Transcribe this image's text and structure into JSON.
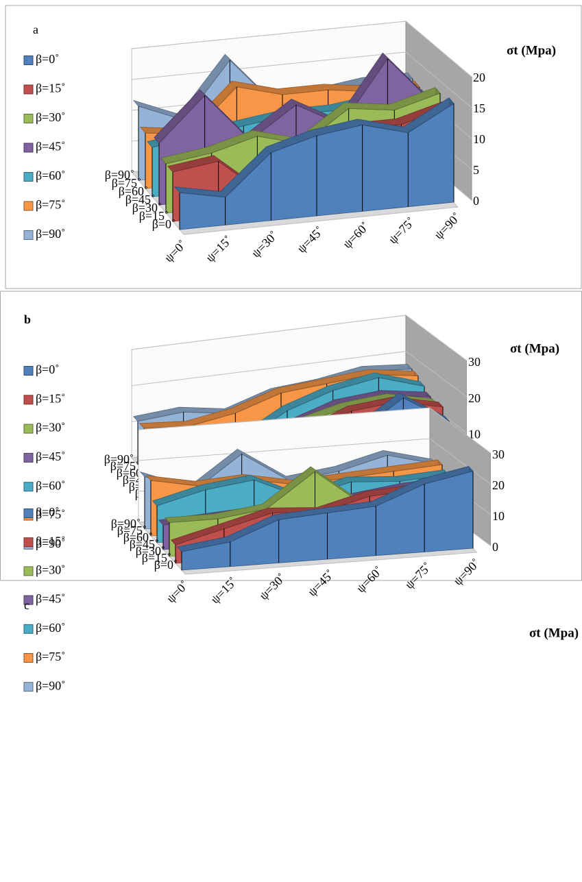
{
  "chart_data": [
    {
      "type": "area",
      "title": "a",
      "y_label": "σt (Mpa)",
      "categories": [
        "ψ=0˚",
        "ψ=15˚",
        "ψ=30˚",
        "ψ=45˚",
        "ψ=60˚",
        "ψ=75˚",
        "ψ=90˚"
      ],
      "ylim": [
        0,
        20
      ],
      "yticks": [
        0,
        5,
        10,
        15,
        20
      ],
      "grid": true,
      "series": [
        {
          "name": "β=0˚",
          "color": "#4f81bd",
          "values": [
            6,
            4.5,
            11,
            13,
            14,
            12,
            16
          ]
        },
        {
          "name": "β=15˚",
          "color": "#c0504d",
          "values": [
            8,
            9,
            3,
            11,
            12,
            12,
            14
          ]
        },
        {
          "name": "β=30˚",
          "color": "#9bbb59",
          "values": [
            8,
            9,
            11,
            9,
            14,
            13,
            15
          ]
        },
        {
          "name": "β=45˚",
          "color": "#8064a2",
          "values": [
            10,
            17,
            9,
            14,
            10,
            20,
            12
          ]
        },
        {
          "name": "β=60˚",
          "color": "#4bacc6",
          "values": [
            8,
            9,
            10,
            11,
            11,
            12,
            12
          ]
        },
        {
          "name": "β=75˚",
          "color": "#f79646",
          "values": [
            9,
            8,
            15,
            13,
            13,
            12,
            12
          ]
        },
        {
          "name": "β=90˚",
          "color": "#95b3d7",
          "values": [
            12,
            9,
            18,
            10,
            11,
            12,
            12
          ]
        }
      ]
    },
    {
      "type": "area",
      "title": "b",
      "y_label": "σt (Mpa)",
      "categories": [
        "ψ=0˚",
        "ψ=15˚",
        "ψ=30˚",
        "ψ=45˚",
        "ψ=60˚",
        "ψ=75˚",
        "ψ=90˚"
      ],
      "ylim": [
        0,
        30
      ],
      "yticks": [
        0,
        10,
        20,
        30
      ],
      "grid": true,
      "series": [
        {
          "name": "β=0˚",
          "color": "#4f81bd",
          "values": [
            6,
            8,
            5,
            14,
            14,
            22,
            14
          ]
        },
        {
          "name": "β=15˚",
          "color": "#c0504d",
          "values": [
            5,
            6,
            7,
            13,
            18,
            19,
            16
          ]
        },
        {
          "name": "β=30˚",
          "color": "#9bbb59",
          "values": [
            7,
            8,
            8,
            14,
            17,
            18,
            15
          ]
        },
        {
          "name": "β=45˚",
          "color": "#8064a2",
          "values": [
            7,
            7,
            6,
            12,
            16,
            17,
            15
          ]
        },
        {
          "name": "β=60˚",
          "color": "#4bacc6",
          "values": [
            9,
            9,
            7,
            14,
            18,
            20,
            16
          ]
        },
        {
          "name": "β=75˚",
          "color": "#f79646",
          "values": [
            12,
            11,
            13,
            17,
            18,
            19,
            17
          ]
        },
        {
          "name": "β=90˚",
          "color": "#95b3d7",
          "values": [
            12,
            13,
            11,
            15,
            16,
            18,
            17
          ]
        }
      ]
    },
    {
      "type": "area",
      "title": "c",
      "y_label": "σt (Mpa)",
      "categories": [
        "ψ=0˚",
        "ψ=15˚",
        "ψ=30˚",
        "ψ=45˚",
        "ψ=60˚",
        "ψ=75˚",
        "ψ=90˚"
      ],
      "ylim": [
        0,
        30
      ],
      "yticks": [
        0,
        10,
        20,
        30
      ],
      "grid": true,
      "series": [
        {
          "name": "β=0˚",
          "color": "#4f81bd",
          "values": [
            6,
            8,
            14,
            15,
            16,
            22,
            25
          ]
        },
        {
          "name": "β=15˚",
          "color": "#c0504d",
          "values": [
            6,
            10,
            14,
            13,
            17,
            18,
            19
          ]
        },
        {
          "name": "β=30˚",
          "color": "#9bbb59",
          "values": [
            11,
            11,
            13,
            24,
            12,
            14,
            15
          ]
        },
        {
          "name": "β=45˚",
          "color": "#8064a2",
          "values": [
            8,
            9,
            10,
            10,
            12,
            14,
            15
          ]
        },
        {
          "name": "β=60˚",
          "color": "#4bacc6",
          "values": [
            12,
            16,
            18,
            11,
            15,
            14,
            15
          ]
        },
        {
          "name": "β=75˚",
          "color": "#f79646",
          "values": [
            18,
            15,
            16,
            13,
            14,
            15,
            16
          ]
        },
        {
          "name": "β=90˚",
          "color": "#95b3d7",
          "values": [
            17,
            11,
            22,
            12,
            14,
            18,
            14
          ]
        }
      ]
    }
  ]
}
